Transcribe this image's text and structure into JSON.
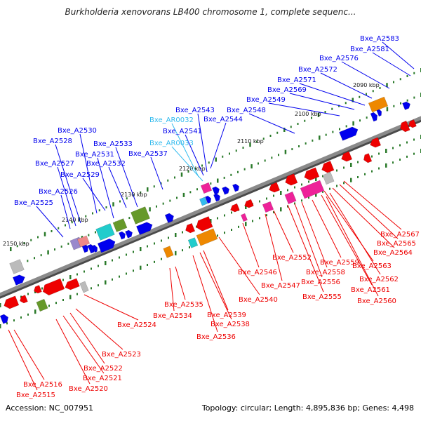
{
  "title": "Burkholderia xenovorans LB400 chromosome 1, complete sequenc...",
  "footer": {
    "accession": "Accession: NC_007951",
    "summary": "Topology: circular; Length: 4,895,836 bp; Genes: 4,498"
  },
  "colors": {
    "backbone": "#8a8a8a",
    "forward_gene": "#0000ee",
    "reverse_gene": "#ee0000",
    "rna_label": "#33bbee",
    "kbp_tick": "#2a7a2a",
    "magenta": "#ee2299",
    "cyan": "#22cccc",
    "olive": "#66992a",
    "orange": "#ee8800",
    "gray": "#bbbbbb",
    "lilac": "#9988cc"
  },
  "kbp_labels": [
    "2090 kbp",
    "2100 kbp",
    "2110 kbp",
    "2120 kbp",
    "2130 kbp",
    "2140 kbp",
    "2150 kbp"
  ],
  "labels_top": [
    "Bxe_A2583",
    "Bxe_A2581",
    "Bxe_A2576",
    "Bxe_A2572",
    "Bxe_A2571",
    "Bxe_A2569",
    "Bxe_A2549",
    "Bxe_A2548",
    "Bxe_A2543",
    "Bxe_A2544",
    "Bxe_AR0032",
    "Bxe_A2541",
    "Bxe_AR0033",
    "Bxe_A2530",
    "Bxe_A2528",
    "Bxe_A2533",
    "Bxe_A2531",
    "Bxe_A2537",
    "Bxe_A2532",
    "Bxe_A2527",
    "Bxe_A2529",
    "Bxe_A2526",
    "Bxe_A2525"
  ],
  "labels_bottom": [
    "Bxe_A2567",
    "Bxe_A2565",
    "Bxe_A2564",
    "Bxe_A2563",
    "Bxe_A2552",
    "Bxe_A2559",
    "Bxe_A2562",
    "Bxe_A2546",
    "Bxe_A2558",
    "Bxe_A2556",
    "Bxe_A2561",
    "Bxe_A2547",
    "Bxe_A2555",
    "Bxe_A2560",
    "Bxe_A2540",
    "Bxe_A2535",
    "Bxe_A2539",
    "Bxe_A2534",
    "Bxe_A2538",
    "Bxe_A2524",
    "Bxe_A2536",
    "Bxe_A2523",
    "Bxe_A2522",
    "Bxe_A2521",
    "Bxe_A2516",
    "Bxe_A2520",
    "Bxe_A2515"
  ]
}
